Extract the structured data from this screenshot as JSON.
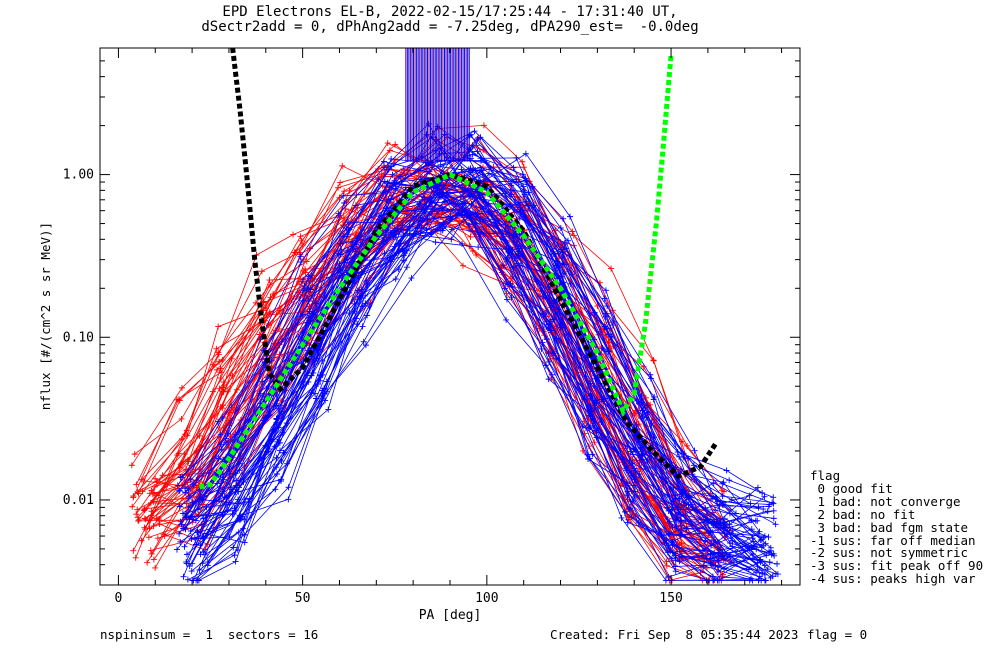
{
  "title_line1": "EPD Electrons EL-B, 2022-02-15/17:25:44 - 17:31:40 UT,",
  "title_line2": "dSectr2add = 0, dPhAng2add = -7.25deg, dPA290_est=  -0.0deg",
  "footer": {
    "left": "nspininsum =  1  sectors = 16",
    "created": "Created: Fri Sep  8 05:35:44 2023",
    "flag": "flag = 0"
  },
  "legend": {
    "title": "flag",
    "items": [
      " 0 good fit",
      " 1 bad: not converge",
      " 2 bad: no fit",
      " 3 bad: bad fgm state",
      "-1 sus: far off median",
      "-2 sus: not symmetric",
      "-3 sus: fit peak off 90",
      "-4 sus: peaks high var"
    ]
  },
  "colors": {
    "red_series": "#ff0000",
    "blue_series": "#0000ff",
    "black_fit": "#000000",
    "green_fit": "#00ff00",
    "purple_marks": "#800080"
  },
  "chart_data": {
    "type": "line",
    "xlabel": "PA [deg]",
    "ylabel": "nflux [#/(cm^2 s sr MeV)]",
    "xlim": [
      -5,
      185
    ],
    "ylim": [
      0.003,
      6
    ],
    "yscale": "log",
    "xticks": [
      0,
      50,
      100,
      150
    ],
    "yticks": [
      0.01,
      0.1,
      1.0
    ],
    "ytick_labels": [
      "0.01",
      "0.10",
      "1.00"
    ],
    "series": [
      {
        "style": "red, + markers, many overlapping spectra",
        "x": [
          8,
          20,
          30,
          42,
          52,
          64,
          75,
          86,
          97,
          108,
          119,
          130,
          141,
          152,
          162
        ],
        "y": [
          0.008,
          0.012,
          0.04,
          0.1,
          0.22,
          0.45,
          0.75,
          0.95,
          0.8,
          0.45,
          0.2,
          0.07,
          0.02,
          0.008,
          0.005
        ]
      },
      {
        "style": "blue, + markers, many overlapping spectra",
        "x": [
          20,
          31,
          42,
          53,
          64,
          75,
          86,
          97,
          108,
          119,
          130,
          141,
          152,
          163,
          175
        ],
        "y": [
          0.006,
          0.01,
          0.03,
          0.09,
          0.25,
          0.55,
          0.9,
          0.85,
          0.5,
          0.2,
          0.06,
          0.02,
          0.008,
          0.006,
          0.005
        ]
      },
      {
        "style": "black dashed fit",
        "x": [
          31,
          33,
          35,
          37,
          39,
          41,
          44,
          50,
          60,
          70,
          80,
          90,
          100,
          110,
          120,
          130,
          138,
          145,
          152,
          158,
          162
        ],
        "y": [
          6,
          2.5,
          0.9,
          0.3,
          0.12,
          0.06,
          0.048,
          0.065,
          0.17,
          0.45,
          0.85,
          1.0,
          0.85,
          0.45,
          0.17,
          0.065,
          0.03,
          0.02,
          0.014,
          0.016,
          0.022
        ]
      },
      {
        "style": "green dashed fit",
        "x": [
          22,
          25,
          30,
          40,
          50,
          60,
          70,
          80,
          90,
          100,
          110,
          120,
          130,
          137,
          140,
          143,
          146,
          148,
          150
        ],
        "y": [
          0.012,
          0.0125,
          0.018,
          0.04,
          0.09,
          0.2,
          0.42,
          0.78,
          1.0,
          0.78,
          0.42,
          0.2,
          0.08,
          0.035,
          0.045,
          0.12,
          0.5,
          1.6,
          5.5
        ]
      }
    ]
  }
}
